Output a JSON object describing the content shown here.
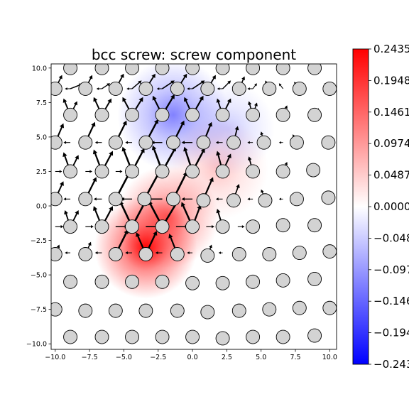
{
  "chart_data": {
    "type": "heatmap",
    "title": "bcc screw: screw component",
    "xlabel": "",
    "ylabel": "",
    "xlim": [
      -10.3,
      10.5
    ],
    "ylim": [
      -10.4,
      10.3
    ],
    "x_ticks": [
      -10.0,
      -7.5,
      -5.0,
      -2.5,
      0.0,
      2.5,
      5.0,
      7.5,
      10.0
    ],
    "x_tick_labels": [
      "−10.0",
      "−7.5",
      "−5.0",
      "−2.5",
      "0.0",
      "2.5",
      "5.0",
      "7.5",
      "10.0"
    ],
    "y_ticks": [
      10.0,
      7.5,
      5.0,
      2.5,
      0.0,
      -2.5,
      -5.0,
      -7.5,
      -10.0
    ],
    "y_tick_labels": [
      "10.0",
      "7.5",
      "5.0",
      "2.5",
      "0.0",
      "−2.5",
      "−5.0",
      "−7.5",
      "−10.0"
    ],
    "colorbar": {
      "range": [
        -0.2435,
        0.2435
      ],
      "tick_values": [
        0.2435,
        0.1948,
        0.1461,
        0.0974,
        0.0487,
        0.0,
        -0.0487,
        -0.0974,
        -0.1461,
        -0.1948,
        -0.2435
      ],
      "tick_labels": [
        "0.2435",
        "0.1948",
        "0.1461",
        "0.0974",
        "0.0487",
        "0.0000",
        "−0.048",
        "−0.097",
        "−0.146",
        "−0.194",
        "−0.243"
      ],
      "colormap": "bwr",
      "colors": {
        "low": "#0000ff",
        "mid": "#ffffff",
        "high": "#ff0000"
      }
    },
    "atoms": [
      [
        -8.9,
        10.0
      ],
      [
        -6.6,
        10.0
      ],
      [
        -4.4,
        10.0
      ],
      [
        -2.2,
        10.0
      ],
      [
        0.0,
        10.0
      ],
      [
        2.2,
        10.0
      ],
      [
        4.4,
        10.0
      ],
      [
        6.6,
        10.0
      ],
      [
        8.9,
        10.0
      ],
      [
        -10.0,
        8.5
      ],
      [
        -7.8,
        8.5
      ],
      [
        -5.6,
        8.5
      ],
      [
        -3.4,
        8.5
      ],
      [
        -1.1,
        8.5
      ],
      [
        1.1,
        8.5
      ],
      [
        3.4,
        8.5
      ],
      [
        5.6,
        8.5
      ],
      [
        7.8,
        8.5
      ],
      [
        10.0,
        8.5
      ],
      [
        -8.9,
        6.6
      ],
      [
        -6.6,
        6.6
      ],
      [
        -4.4,
        6.6
      ],
      [
        -2.2,
        6.6
      ],
      [
        0.0,
        6.6
      ],
      [
        2.2,
        6.6
      ],
      [
        4.4,
        6.6
      ],
      [
        6.6,
        6.6
      ],
      [
        8.9,
        6.6
      ],
      [
        -10.0,
        4.6
      ],
      [
        -7.8,
        4.6
      ],
      [
        -5.6,
        4.6
      ],
      [
        -3.4,
        4.6
      ],
      [
        -1.4,
        4.6
      ],
      [
        0.8,
        4.6
      ],
      [
        3.0,
        4.6
      ],
      [
        5.2,
        4.6
      ],
      [
        7.6,
        4.6
      ],
      [
        9.9,
        4.6
      ],
      [
        -8.9,
        2.5
      ],
      [
        -6.6,
        2.5
      ],
      [
        -4.4,
        2.5
      ],
      [
        -2.2,
        2.5
      ],
      [
        0.0,
        2.5
      ],
      [
        2.2,
        2.5
      ],
      [
        4.4,
        2.5
      ],
      [
        6.6,
        2.5
      ],
      [
        8.8,
        2.6
      ],
      [
        -10.0,
        0.5
      ],
      [
        -7.8,
        0.5
      ],
      [
        -5.6,
        0.5
      ],
      [
        -3.5,
        0.5
      ],
      [
        -1.4,
        0.5
      ],
      [
        0.8,
        0.4
      ],
      [
        3.0,
        0.4
      ],
      [
        5.3,
        0.4
      ],
      [
        7.6,
        0.5
      ],
      [
        9.9,
        0.6
      ],
      [
        -8.9,
        -1.5
      ],
      [
        -6.6,
        -1.5
      ],
      [
        -4.4,
        -1.5
      ],
      [
        -2.2,
        -1.5
      ],
      [
        0.0,
        -1.5
      ],
      [
        2.2,
        -1.5
      ],
      [
        4.4,
        -1.5
      ],
      [
        6.6,
        -1.4
      ],
      [
        8.9,
        -1.4
      ],
      [
        -10.0,
        -3.5
      ],
      [
        -7.8,
        -3.5
      ],
      [
        -5.6,
        -3.5
      ],
      [
        -3.4,
        -3.5
      ],
      [
        -1.1,
        -3.5
      ],
      [
        1.1,
        -3.6
      ],
      [
        3.4,
        -3.5
      ],
      [
        5.6,
        -3.5
      ],
      [
        7.8,
        -3.4
      ],
      [
        10.0,
        -3.3
      ],
      [
        -8.9,
        -5.5
      ],
      [
        -6.6,
        -5.5
      ],
      [
        -4.4,
        -5.5
      ],
      [
        -2.2,
        -5.5
      ],
      [
        0.0,
        -5.6
      ],
      [
        2.2,
        -5.6
      ],
      [
        4.4,
        -5.5
      ],
      [
        6.6,
        -5.4
      ],
      [
        8.9,
        -5.3
      ],
      [
        -10.0,
        -7.5
      ],
      [
        -7.8,
        -7.6
      ],
      [
        -5.6,
        -7.6
      ],
      [
        -3.4,
        -7.6
      ],
      [
        -1.1,
        -7.6
      ],
      [
        1.1,
        -7.7
      ],
      [
        3.4,
        -7.6
      ],
      [
        5.6,
        -7.5
      ],
      [
        7.8,
        -7.4
      ],
      [
        10.0,
        -7.4
      ],
      [
        -8.9,
        -9.5
      ],
      [
        -6.6,
        -9.5
      ],
      [
        -4.4,
        -9.5
      ],
      [
        -2.2,
        -9.5
      ],
      [
        0.0,
        -9.5
      ],
      [
        2.2,
        -9.6
      ],
      [
        4.4,
        -9.5
      ],
      [
        6.6,
        -9.5
      ],
      [
        8.9,
        -9.4
      ]
    ],
    "heat_blobs": [
      {
        "x": -3.4,
        "y": -3.0,
        "amplitude": 0.24,
        "spread": 2.2
      },
      {
        "x": -1.8,
        "y": -0.8,
        "amplitude": 0.15,
        "spread": 2.2
      },
      {
        "x": 1.8,
        "y": 2.7,
        "amplitude": 0.055,
        "spread": 2.2
      },
      {
        "x": -1.4,
        "y": 6.6,
        "amplitude": -0.12,
        "spread": 2.4
      },
      {
        "x": 2.6,
        "y": 5.6,
        "amplitude": -0.05,
        "spread": 2.0
      }
    ],
    "arrows": [
      [
        -8.9,
        8.5,
        0.9,
        0.35
      ],
      [
        -6.6,
        8.5,
        0.6,
        0.4
      ],
      [
        -4.4,
        8.5,
        0.7,
        0.6
      ],
      [
        -2.2,
        8.5,
        0.9,
        0.6
      ],
      [
        0.0,
        8.5,
        0.9,
        0.6
      ],
      [
        2.2,
        8.5,
        0.6,
        0.6
      ],
      [
        4.4,
        8.5,
        0.3,
        0.4
      ],
      [
        6.6,
        8.5,
        -0.3,
        0.4
      ],
      [
        -8.9,
        8.5,
        -0.4,
        0.0
      ],
      [
        -6.6,
        8.5,
        -0.4,
        0.0
      ],
      [
        -4.4,
        8.5,
        -0.4,
        0.0
      ],
      [
        -2.2,
        8.5,
        -0.4,
        0.0
      ],
      [
        0.0,
        8.5,
        -0.4,
        0.0
      ],
      [
        2.2,
        8.5,
        -0.4,
        0.0
      ],
      [
        4.4,
        8.5,
        -0.4,
        0.0
      ],
      [
        -10.0,
        8.5,
        0.5,
        1.0
      ],
      [
        -7.8,
        8.5,
        0.5,
        1.0
      ],
      [
        -5.6,
        8.5,
        0.6,
        1.1
      ],
      [
        -3.4,
        8.5,
        0.7,
        1.1
      ],
      [
        -1.1,
        8.5,
        0.7,
        1.1
      ],
      [
        1.1,
        8.5,
        0.6,
        1.0
      ],
      [
        3.4,
        8.5,
        0.4,
        0.9
      ],
      [
        5.6,
        8.5,
        -0.3,
        0.6
      ],
      [
        7.8,
        8.5,
        -0.4,
        0.5
      ],
      [
        10.0,
        8.5,
        -0.4,
        0.4
      ],
      [
        -8.9,
        6.6,
        -0.5,
        1.2
      ],
      [
        -6.6,
        6.6,
        -0.6,
        1.3
      ],
      [
        -4.4,
        6.6,
        -0.7,
        1.3
      ],
      [
        -2.2,
        6.6,
        -0.7,
        1.4
      ],
      [
        0.0,
        6.6,
        -0.6,
        1.3
      ],
      [
        2.2,
        6.6,
        -0.4,
        1.2
      ],
      [
        4.4,
        6.6,
        -0.3,
        1.0
      ],
      [
        6.6,
        6.6,
        0.3,
        0.7
      ],
      [
        8.9,
        6.6,
        0.3,
        0.5
      ],
      [
        -8.9,
        6.6,
        0.5,
        1.0
      ],
      [
        -6.6,
        6.6,
        0.7,
        1.2
      ],
      [
        -4.4,
        6.6,
        0.8,
        1.3
      ],
      [
        -2.2,
        6.6,
        0.9,
        1.5
      ],
      [
        0.0,
        6.6,
        0.8,
        1.4
      ],
      [
        2.2,
        6.6,
        0.6,
        1.2
      ],
      [
        4.4,
        6.6,
        0.3,
        0.9
      ],
      [
        -10.0,
        4.6,
        0.6,
        1.4
      ],
      [
        -7.8,
        4.6,
        0.7,
        1.5
      ],
      [
        -5.6,
        4.6,
        0.8,
        1.6
      ],
      [
        -3.4,
        4.6,
        0.9,
        1.7
      ],
      [
        -1.4,
        4.6,
        0.8,
        1.6
      ],
      [
        0.8,
        4.6,
        0.6,
        1.5
      ],
      [
        3.0,
        4.6,
        0.3,
        1.2
      ],
      [
        5.2,
        4.6,
        -0.2,
        0.8
      ],
      [
        7.6,
        4.6,
        -0.3,
        0.6
      ],
      [
        -8.9,
        2.5,
        -0.5,
        1.4
      ],
      [
        -6.6,
        2.5,
        -0.6,
        1.6
      ],
      [
        -4.4,
        2.5,
        -0.7,
        1.8
      ],
      [
        -2.2,
        2.5,
        -0.7,
        1.9
      ],
      [
        0.0,
        2.5,
        -0.6,
        1.8
      ],
      [
        2.2,
        2.5,
        -0.4,
        1.5
      ],
      [
        4.4,
        2.5,
        -0.3,
        1.1
      ],
      [
        6.6,
        2.5,
        0.3,
        0.7
      ],
      [
        -8.9,
        2.5,
        0.6,
        1.2
      ],
      [
        -6.6,
        2.5,
        0.8,
        1.5
      ],
      [
        -4.4,
        2.5,
        0.9,
        1.7
      ],
      [
        -2.2,
        2.5,
        1.0,
        1.8
      ],
      [
        0.0,
        2.5,
        0.9,
        1.7
      ],
      [
        2.2,
        2.5,
        0.6,
        1.3
      ],
      [
        -10.0,
        0.5,
        0.6,
        1.3
      ],
      [
        -7.8,
        0.5,
        0.8,
        1.6
      ],
      [
        -5.6,
        0.5,
        1.0,
        1.9
      ],
      [
        -3.5,
        0.5,
        1.1,
        2.0
      ],
      [
        -1.4,
        0.5,
        1.0,
        2.0
      ],
      [
        0.8,
        0.5,
        0.7,
        1.6
      ],
      [
        3.0,
        0.5,
        0.4,
        1.1
      ],
      [
        5.3,
        0.5,
        -0.3,
        0.7
      ],
      [
        -8.9,
        -1.5,
        -0.4,
        1.2
      ],
      [
        -6.6,
        -1.5,
        -0.6,
        1.5
      ],
      [
        -4.4,
        -1.5,
        -0.9,
        1.9
      ],
      [
        -2.2,
        -1.5,
        1.2,
        2.0
      ],
      [
        0.0,
        -1.5,
        -0.8,
        1.8
      ],
      [
        2.2,
        -1.5,
        -0.4,
        1.3
      ],
      [
        -8.9,
        -1.5,
        0.6,
        1.2
      ],
      [
        -6.6,
        -1.5,
        0.8,
        1.5
      ],
      [
        -4.4,
        -1.5,
        1.0,
        1.9
      ],
      [
        -2.2,
        -1.5,
        -1.0,
        1.9
      ],
      [
        0.0,
        -1.5,
        0.6,
        1.6
      ],
      [
        -8.9,
        4.6,
        -0.5,
        0.0
      ],
      [
        -6.6,
        4.6,
        -0.5,
        0.0
      ],
      [
        -4.4,
        4.6,
        -0.5,
        0.0
      ],
      [
        -2.2,
        4.6,
        -0.8,
        0.0
      ],
      [
        0.0,
        4.6,
        -0.8,
        0.0
      ],
      [
        2.2,
        4.6,
        -0.5,
        0.0
      ],
      [
        4.4,
        4.6,
        -0.4,
        0.0
      ],
      [
        6.6,
        4.6,
        -0.3,
        0.0
      ],
      [
        -10.0,
        2.5,
        0.5,
        0.0
      ],
      [
        -7.8,
        2.5,
        0.5,
        0.0
      ],
      [
        -5.6,
        2.5,
        0.5,
        0.0
      ],
      [
        -8.9,
        0.5,
        -0.5,
        0.0
      ],
      [
        -6.6,
        0.5,
        -0.6,
        0.0
      ],
      [
        -4.4,
        0.5,
        -0.8,
        0.0
      ],
      [
        -2.2,
        0.5,
        -1.1,
        0.0
      ],
      [
        0.0,
        0.5,
        -0.8,
        0.0
      ],
      [
        2.2,
        0.5,
        -0.5,
        0.0
      ],
      [
        4.4,
        0.5,
        -0.4,
        0.0
      ],
      [
        6.6,
        0.5,
        -0.3,
        0.0
      ],
      [
        -10.0,
        -1.5,
        0.6,
        0.0
      ],
      [
        -7.8,
        -1.5,
        0.6,
        0.0
      ],
      [
        -5.6,
        -1.5,
        0.9,
        0.0
      ],
      [
        -3.4,
        -1.5,
        1.1,
        0.0
      ],
      [
        -1.2,
        -1.5,
        0.9,
        0.0
      ],
      [
        1.0,
        -1.5,
        0.6,
        0.0
      ],
      [
        3.3,
        -1.5,
        0.5,
        0.0
      ],
      [
        -8.9,
        -3.4,
        -0.4,
        0.0
      ],
      [
        -6.6,
        -3.4,
        -0.5,
        0.0
      ],
      [
        -4.4,
        -3.4,
        -0.5,
        0.0
      ],
      [
        -2.2,
        -3.4,
        -0.5,
        0.0
      ],
      [
        0.0,
        -3.4,
        -0.4,
        0.0
      ],
      [
        2.2,
        -3.4,
        -0.3,
        0.0
      ],
      [
        -5.6,
        -3.5,
        0.9,
        1.8
      ],
      [
        -3.4,
        -3.5,
        -0.7,
        1.6
      ],
      [
        -3.4,
        -3.5,
        0.8,
        1.7
      ],
      [
        -1.1,
        -3.5,
        -0.6,
        1.5
      ],
      [
        -10.0,
        -3.5,
        0.3,
        0.7
      ],
      [
        -7.8,
        -3.5,
        0.4,
        0.9
      ],
      [
        1.1,
        -3.6,
        0.3,
        0.8
      ],
      [
        3.4,
        -3.5,
        0.2,
        0.5
      ]
    ]
  }
}
